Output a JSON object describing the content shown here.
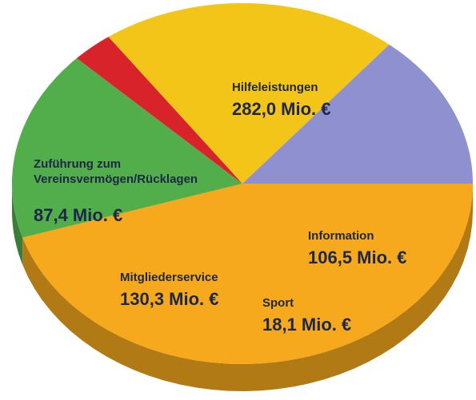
{
  "chart_data": {
    "type": "pie",
    "categories": [
      "Hilfeleistungen",
      "Information",
      "Sport",
      "Mitgliederservice",
      "Zuführung zum Vereinsvermögen/Rücklagen"
    ],
    "values": [
      282.0,
      106.5,
      18.1,
      130.3,
      87.4
    ],
    "value_labels": [
      "282,0 Mio. €",
      "106,5 Mio. €",
      "18,1 Mio. €",
      "130,3 Mio. €",
      "87,4 Mio. €"
    ],
    "colors": [
      "#f6a91d",
      "#52ae4b",
      "#d9232b",
      "#f3c519",
      "#8e90d0"
    ]
  }
}
